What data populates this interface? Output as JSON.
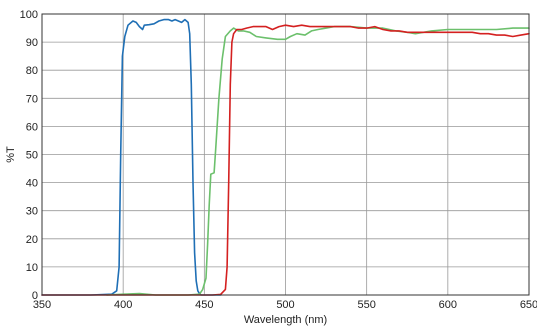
{
  "chart_data": {
    "type": "line",
    "title": "",
    "xlabel": "Wavelength (nm)",
    "ylabel": "%T",
    "xlim": [
      350,
      650
    ],
    "ylim": [
      0,
      100
    ],
    "x_ticks": [
      350,
      400,
      450,
      500,
      550,
      600,
      650
    ],
    "y_ticks": [
      0,
      10,
      20,
      30,
      40,
      50,
      60,
      70,
      80,
      90,
      100
    ],
    "grid": true,
    "legend": "none",
    "colors": {
      "grid": "#999999",
      "frame": "#333333"
    },
    "series": [
      {
        "color": "#1f6fb5",
        "points": [
          [
            350,
            0
          ],
          [
            380,
            0
          ],
          [
            393,
            0.3
          ],
          [
            396,
            1.5
          ],
          [
            397.5,
            10
          ],
          [
            398.5,
            50
          ],
          [
            399.5,
            85
          ],
          [
            401,
            92
          ],
          [
            403,
            96
          ],
          [
            406,
            97.5
          ],
          [
            408,
            97
          ],
          [
            410,
            95.5
          ],
          [
            412,
            94.5
          ],
          [
            413,
            96
          ],
          [
            416,
            96.2
          ],
          [
            419,
            96.5
          ],
          [
            422,
            97.5
          ],
          [
            425,
            98
          ],
          [
            428,
            98
          ],
          [
            430,
            97.5
          ],
          [
            432,
            98
          ],
          [
            434,
            97.5
          ],
          [
            436,
            97
          ],
          [
            438,
            98
          ],
          [
            440,
            97
          ],
          [
            441,
            93
          ],
          [
            442,
            75
          ],
          [
            443,
            40
          ],
          [
            444,
            15
          ],
          [
            445,
            5
          ],
          [
            446,
            1.5
          ],
          [
            447,
            0.5
          ],
          [
            448,
            0
          ],
          [
            460,
            0
          ]
        ]
      },
      {
        "color": "#6cc06c",
        "points": [
          [
            390,
            0
          ],
          [
            400,
            0.3
          ],
          [
            410,
            0.5
          ],
          [
            420,
            0
          ],
          [
            440,
            0
          ],
          [
            447,
            0.3
          ],
          [
            449,
            2
          ],
          [
            451,
            6
          ],
          [
            452,
            18
          ],
          [
            453,
            32
          ],
          [
            454,
            43
          ],
          [
            456,
            43.5
          ],
          [
            457,
            52
          ],
          [
            459,
            70
          ],
          [
            461,
            84
          ],
          [
            463,
            92
          ],
          [
            466,
            94
          ],
          [
            468,
            95
          ],
          [
            471,
            94
          ],
          [
            474,
            94
          ],
          [
            478,
            93.5
          ],
          [
            482,
            92
          ],
          [
            488,
            91.5
          ],
          [
            495,
            91
          ],
          [
            500,
            91
          ],
          [
            503,
            92
          ],
          [
            507,
            93
          ],
          [
            512,
            92.5
          ],
          [
            516,
            94
          ],
          [
            520,
            94.5
          ],
          [
            525,
            95
          ],
          [
            530,
            95.5
          ],
          [
            540,
            95.5
          ],
          [
            550,
            95
          ],
          [
            560,
            95
          ],
          [
            568,
            94
          ],
          [
            575,
            93.5
          ],
          [
            580,
            93
          ],
          [
            585,
            93.5
          ],
          [
            590,
            94
          ],
          [
            600,
            94.5
          ],
          [
            610,
            94.5
          ],
          [
            620,
            94.5
          ],
          [
            630,
            94.5
          ],
          [
            640,
            95
          ],
          [
            650,
            95
          ]
        ]
      },
      {
        "color": "#d42020",
        "points": [
          [
            350,
            0
          ],
          [
            440,
            0
          ],
          [
            455,
            0
          ],
          [
            460,
            0.2
          ],
          [
            463,
            2
          ],
          [
            464,
            10
          ],
          [
            465,
            40
          ],
          [
            466,
            75
          ],
          [
            467,
            90
          ],
          [
            468,
            93
          ],
          [
            470,
            94.5
          ],
          [
            473,
            94.5
          ],
          [
            476,
            95
          ],
          [
            480,
            95.5
          ],
          [
            484,
            95.5
          ],
          [
            488,
            95.5
          ],
          [
            492,
            94.5
          ],
          [
            496,
            95.5
          ],
          [
            500,
            96
          ],
          [
            505,
            95.5
          ],
          [
            510,
            96
          ],
          [
            515,
            95.5
          ],
          [
            520,
            95.5
          ],
          [
            525,
            95.5
          ],
          [
            530,
            95.5
          ],
          [
            535,
            95.5
          ],
          [
            540,
            95.5
          ],
          [
            545,
            95
          ],
          [
            550,
            95
          ],
          [
            555,
            95.5
          ],
          [
            560,
            94.5
          ],
          [
            565,
            94
          ],
          [
            570,
            94
          ],
          [
            575,
            93.5
          ],
          [
            580,
            93.5
          ],
          [
            585,
            93.5
          ],
          [
            590,
            93.5
          ],
          [
            600,
            93.5
          ],
          [
            610,
            93.5
          ],
          [
            615,
            93.5
          ],
          [
            620,
            93
          ],
          [
            625,
            93
          ],
          [
            630,
            92.5
          ],
          [
            635,
            92.5
          ],
          [
            640,
            92
          ],
          [
            645,
            92.5
          ],
          [
            650,
            93
          ]
        ]
      }
    ]
  }
}
